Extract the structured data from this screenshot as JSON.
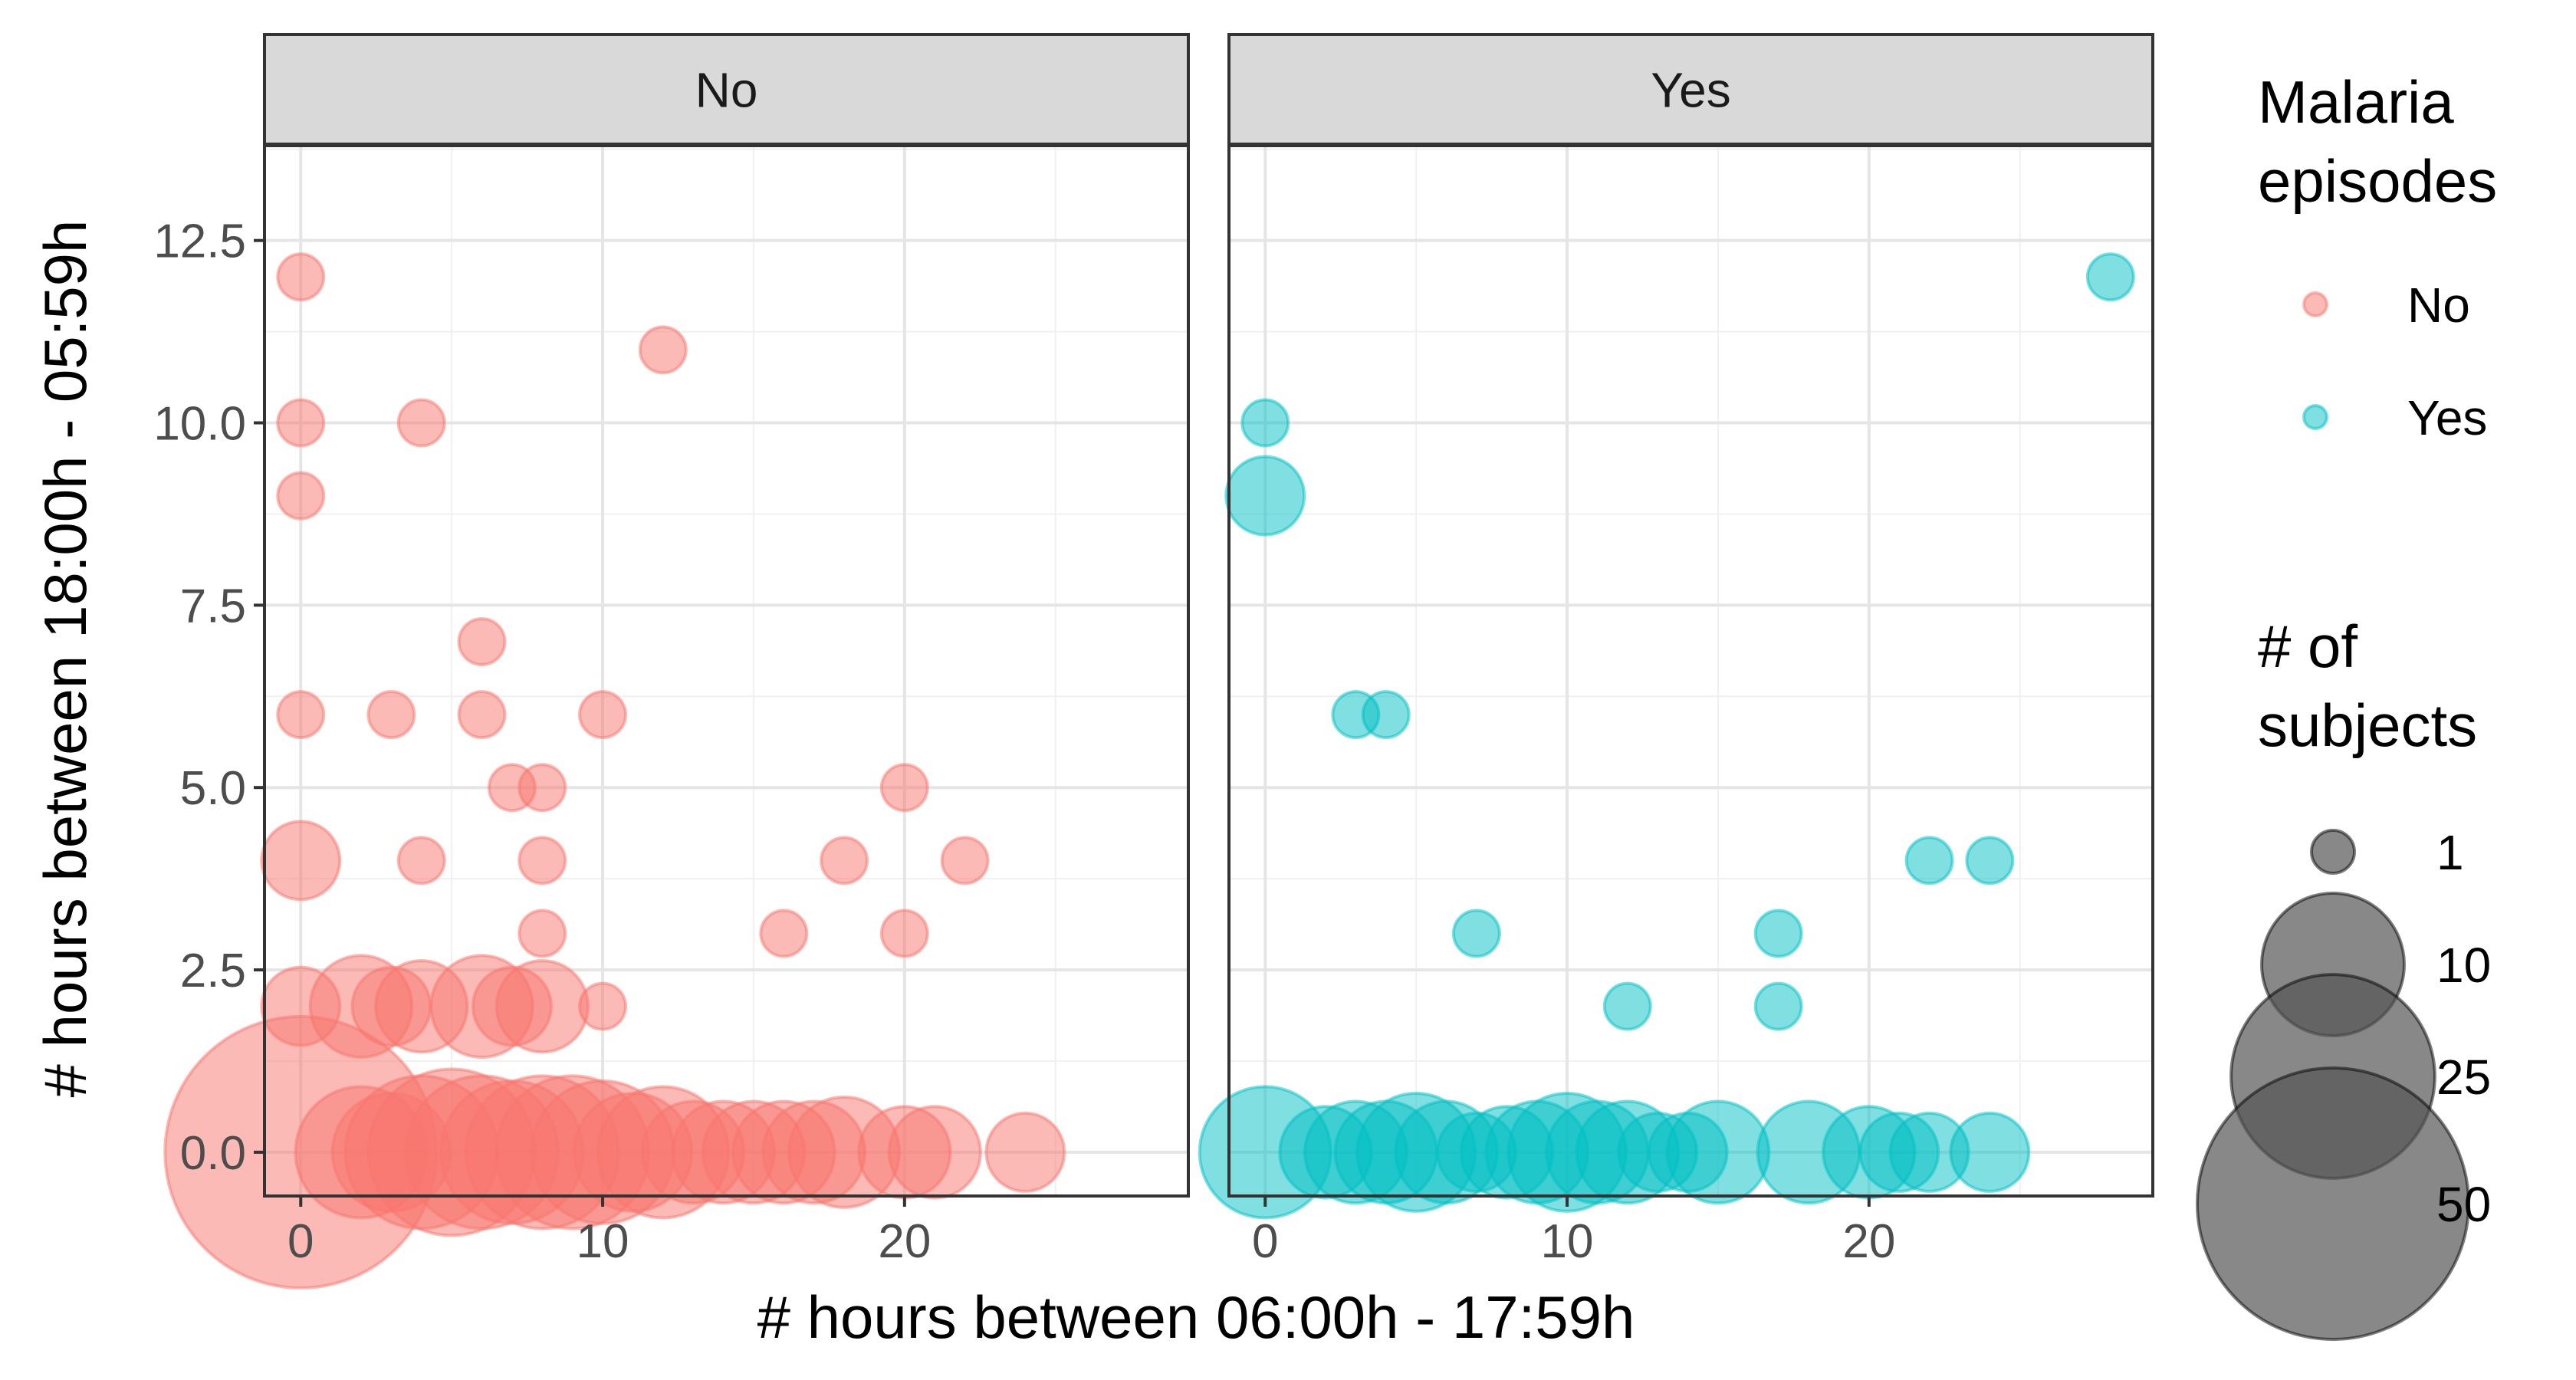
{
  "chart_data": {
    "type": "scatter",
    "xlabel": "# hours between 06:00h - 17:59h",
    "ylabel": "# hours between 18:00h - 05:59h",
    "xlim": [
      -1.2,
      29.4
    ],
    "ylim": [
      -0.6,
      13.8
    ],
    "x_ticks": [
      0,
      10,
      20
    ],
    "y_ticks": [
      0,
      2.5,
      5,
      7.5,
      10,
      12.5
    ],
    "y_tick_labels": [
      "0.0",
      "2.5",
      "5.0",
      "7.5",
      "10.0",
      "12.5"
    ],
    "grid": true,
    "legend_placement": "right",
    "colors": {
      "No": "#F8766D",
      "Yes": "#00BFC4",
      "size_key": "#555555"
    },
    "legend": {
      "color_title": [
        "Malaria",
        "episodes"
      ],
      "color_entries": [
        "No",
        "Yes"
      ],
      "size_title": [
        "# of",
        "subjects"
      ],
      "size_entries": [
        "1",
        "10",
        "25",
        "50"
      ],
      "size_values": [
        1,
        10,
        25,
        50
      ]
    },
    "panels": [
      {
        "name": "No",
        "points": [
          {
            "x": 0,
            "y": 12,
            "n": 1
          },
          {
            "x": 12,
            "y": 11,
            "n": 1
          },
          {
            "x": 0,
            "y": 10,
            "n": 1
          },
          {
            "x": 4,
            "y": 10,
            "n": 1
          },
          {
            "x": 0,
            "y": 9,
            "n": 1
          },
          {
            "x": 6,
            "y": 7,
            "n": 1
          },
          {
            "x": 0,
            "y": 6,
            "n": 1
          },
          {
            "x": 3,
            "y": 6,
            "n": 1
          },
          {
            "x": 6,
            "y": 6,
            "n": 1
          },
          {
            "x": 10,
            "y": 6,
            "n": 1
          },
          {
            "x": 7,
            "y": 5,
            "n": 1
          },
          {
            "x": 8,
            "y": 5,
            "n": 1
          },
          {
            "x": 20,
            "y": 5,
            "n": 1
          },
          {
            "x": 0,
            "y": 4,
            "n": 2
          },
          {
            "x": 4,
            "y": 4,
            "n": 1
          },
          {
            "x": 8,
            "y": 4,
            "n": 1
          },
          {
            "x": 18,
            "y": 4,
            "n": 1
          },
          {
            "x": 22,
            "y": 4,
            "n": 1
          },
          {
            "x": 8,
            "y": 3,
            "n": 1
          },
          {
            "x": 16,
            "y": 3,
            "n": 1
          },
          {
            "x": 20,
            "y": 3,
            "n": 1
          },
          {
            "x": 0,
            "y": 2,
            "n": 2
          },
          {
            "x": 2,
            "y": 2,
            "n": 4
          },
          {
            "x": 3,
            "y": 2,
            "n": 2
          },
          {
            "x": 4,
            "y": 2,
            "n": 3
          },
          {
            "x": 6,
            "y": 2,
            "n": 4
          },
          {
            "x": 7,
            "y": 2,
            "n": 2
          },
          {
            "x": 8,
            "y": 2,
            "n": 3
          },
          {
            "x": 10,
            "y": 2,
            "n": 1
          },
          {
            "x": 0,
            "y": 0,
            "n": 50
          },
          {
            "x": 2,
            "y": 0,
            "n": 8
          },
          {
            "x": 3,
            "y": 0,
            "n": 6
          },
          {
            "x": 4,
            "y": 0,
            "n": 12
          },
          {
            "x": 5,
            "y": 0,
            "n": 15
          },
          {
            "x": 6,
            "y": 0,
            "n": 12
          },
          {
            "x": 7,
            "y": 0,
            "n": 10
          },
          {
            "x": 8,
            "y": 0,
            "n": 12
          },
          {
            "x": 9,
            "y": 0,
            "n": 12
          },
          {
            "x": 10,
            "y": 0,
            "n": 10
          },
          {
            "x": 11,
            "y": 0,
            "n": 6
          },
          {
            "x": 12,
            "y": 0,
            "n": 8
          },
          {
            "x": 13,
            "y": 0,
            "n": 4
          },
          {
            "x": 14,
            "y": 0,
            "n": 4
          },
          {
            "x": 15,
            "y": 0,
            "n": 4
          },
          {
            "x": 16,
            "y": 0,
            "n": 4
          },
          {
            "x": 17,
            "y": 0,
            "n": 4
          },
          {
            "x": 18,
            "y": 0,
            "n": 5
          },
          {
            "x": 20,
            "y": 0,
            "n": 3
          },
          {
            "x": 21,
            "y": 0,
            "n": 3
          },
          {
            "x": 24,
            "y": 0,
            "n": 2
          }
        ]
      },
      {
        "name": "Yes",
        "points": [
          {
            "x": 28,
            "y": 12,
            "n": 1
          },
          {
            "x": 0,
            "y": 10,
            "n": 1
          },
          {
            "x": 0,
            "y": 9,
            "n": 2
          },
          {
            "x": 3,
            "y": 6,
            "n": 1
          },
          {
            "x": 4,
            "y": 6,
            "n": 1
          },
          {
            "x": 22,
            "y": 4,
            "n": 1
          },
          {
            "x": 24,
            "y": 4,
            "n": 1
          },
          {
            "x": 7,
            "y": 3,
            "n": 1
          },
          {
            "x": 17,
            "y": 3,
            "n": 1
          },
          {
            "x": 12,
            "y": 2,
            "n": 1
          },
          {
            "x": 17,
            "y": 2,
            "n": 1
          },
          {
            "x": 0,
            "y": 0,
            "n": 8
          },
          {
            "x": 2,
            "y": 0,
            "n": 3
          },
          {
            "x": 3,
            "y": 0,
            "n": 4
          },
          {
            "x": 4,
            "y": 0,
            "n": 4
          },
          {
            "x": 5,
            "y": 0,
            "n": 6
          },
          {
            "x": 6,
            "y": 0,
            "n": 4
          },
          {
            "x": 7,
            "y": 0,
            "n": 2
          },
          {
            "x": 8,
            "y": 0,
            "n": 3
          },
          {
            "x": 9,
            "y": 0,
            "n": 4
          },
          {
            "x": 10,
            "y": 0,
            "n": 6
          },
          {
            "x": 11,
            "y": 0,
            "n": 4
          },
          {
            "x": 12,
            "y": 0,
            "n": 4
          },
          {
            "x": 13,
            "y": 0,
            "n": 2
          },
          {
            "x": 14,
            "y": 0,
            "n": 2
          },
          {
            "x": 15,
            "y": 0,
            "n": 4
          },
          {
            "x": 18,
            "y": 0,
            "n": 4
          },
          {
            "x": 20,
            "y": 0,
            "n": 3
          },
          {
            "x": 21,
            "y": 0,
            "n": 2
          },
          {
            "x": 22,
            "y": 0,
            "n": 2
          },
          {
            "x": 24,
            "y": 0,
            "n": 2
          }
        ]
      }
    ]
  }
}
